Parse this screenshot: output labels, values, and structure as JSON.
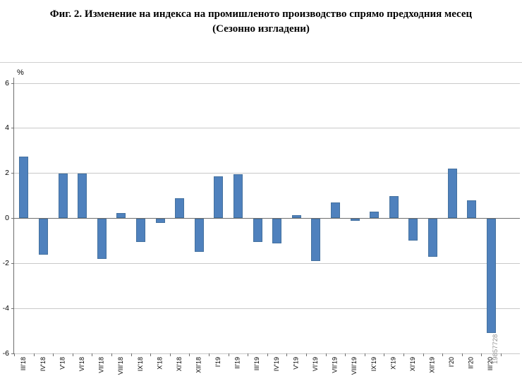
{
  "figure": {
    "title_line1": "Фиг. 2. Изменение на индекса на промишленото производство спрямо предходния месец",
    "title_line2": "(Сезонно изгладени)"
  },
  "watermark": "19857728",
  "chart_data": {
    "type": "bar",
    "title": "Фиг. 2. Изменение на индекса на промишленото производство спрямо предходния месец (Сезонно изгладени)",
    "xlabel": "",
    "ylabel": "%",
    "ylim": [
      -6,
      6
    ],
    "ytick_step": 2,
    "grid": true,
    "legend": "none",
    "bar_color": "#4f81bd",
    "categories": [
      "III'18",
      "IV'18",
      "V'18",
      "VI'18",
      "VII'18",
      "VIII'18",
      "IX'18",
      "X'18",
      "XI'18",
      "XII'18",
      "I'19",
      "II'19",
      "III'19",
      "IV'19",
      "V'19",
      "VI'19",
      "VII'19",
      "VIII'19",
      "IX'19",
      "X'19",
      "XI'19",
      "XII'19",
      "I'20",
      "II'20",
      "III'20"
    ],
    "values": [
      2.75,
      -1.6,
      2.0,
      2.0,
      -1.8,
      0.25,
      -1.05,
      -0.2,
      0.9,
      -1.5,
      1.85,
      1.95,
      -1.05,
      -1.1,
      0.15,
      -1.9,
      0.7,
      -0.1,
      0.3,
      1.0,
      -1.0,
      -1.7,
      2.2,
      0.8,
      -5.1
    ]
  }
}
